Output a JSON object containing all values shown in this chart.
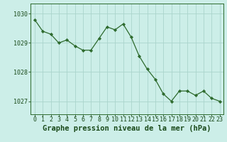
{
  "x": [
    0,
    1,
    2,
    3,
    4,
    5,
    6,
    7,
    8,
    9,
    10,
    11,
    12,
    13,
    14,
    15,
    16,
    17,
    18,
    19,
    20,
    21,
    22,
    23
  ],
  "y": [
    1029.8,
    1029.4,
    1029.3,
    1029.0,
    1029.1,
    1028.9,
    1028.75,
    1028.75,
    1029.15,
    1029.55,
    1029.45,
    1029.65,
    1029.2,
    1028.55,
    1028.1,
    1027.75,
    1027.25,
    1027.0,
    1027.35,
    1027.35,
    1027.2,
    1027.35,
    1027.1,
    1027.0
  ],
  "line_color": "#2d6a2d",
  "marker_color": "#2d6a2d",
  "bg_color": "#cceee8",
  "grid_color": "#aad4cc",
  "title": "Graphe pression niveau de la mer (hPa)",
  "title_color": "#1a4a1a",
  "title_fontsize": 7.5,
  "ytick_labels": [
    "1027",
    "1028",
    "1029",
    "1030"
  ],
  "yticks": [
    1027,
    1028,
    1029,
    1030
  ],
  "ylim": [
    1026.55,
    1030.35
  ],
  "xlim": [
    -0.5,
    23.5
  ],
  "tick_color": "#1a4a1a",
  "tick_fontsize": 6.0,
  "border_color": "#2d6a2d",
  "xlabel_ticks": [
    "0",
    "1",
    "2",
    "3",
    "4",
    "5",
    "6",
    "7",
    "8",
    "9",
    "10",
    "11",
    "12",
    "13",
    "14",
    "15",
    "16",
    "17",
    "18",
    "19",
    "20",
    "21",
    "22",
    "23"
  ]
}
